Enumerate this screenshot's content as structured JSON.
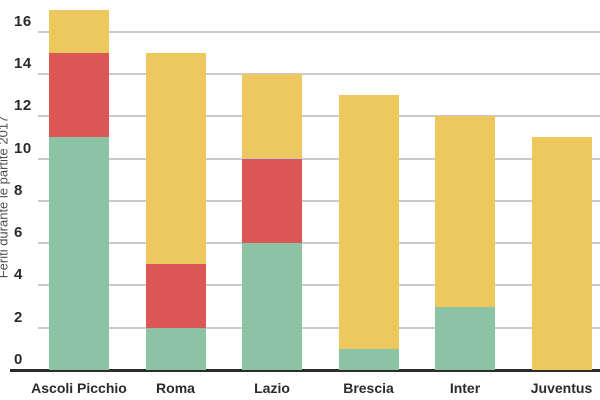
{
  "chart_data": {
    "type": "bar",
    "stacked": true,
    "title": "",
    "xlabel": "",
    "ylabel": "Feriti durante le partite 2017",
    "categories": [
      "Ascoli Picchio",
      "Roma",
      "Lazio",
      "Brescia",
      "Inter",
      "Juventus"
    ],
    "series": [
      {
        "name": "bottom-green-segment",
        "color": "#8cc3a4",
        "values": [
          11,
          2,
          6,
          1,
          3,
          0
        ]
      },
      {
        "name": "middle-red-segment",
        "color": "#dc5656",
        "values": [
          4,
          3,
          4,
          0,
          0,
          0
        ]
      },
      {
        "name": "top-yellow-segment",
        "color": "#edc85e",
        "values": [
          2,
          10,
          4,
          12,
          9,
          11
        ]
      }
    ],
    "totals": [
      17,
      15,
      14,
      13,
      12,
      11
    ],
    "yticks": [
      0,
      2,
      4,
      6,
      8,
      10,
      12,
      14,
      16
    ],
    "ylim": [
      0,
      17.5
    ],
    "grid": "horizontal",
    "legend": "none",
    "colors": {
      "gridline": "#cacaca",
      "axis_line": "#2b2b2b",
      "tick_label": "#2b2b2b",
      "category_label": "#2b2b2b",
      "axis_title": "#4f4f4f",
      "background": "#ffffff"
    }
  }
}
